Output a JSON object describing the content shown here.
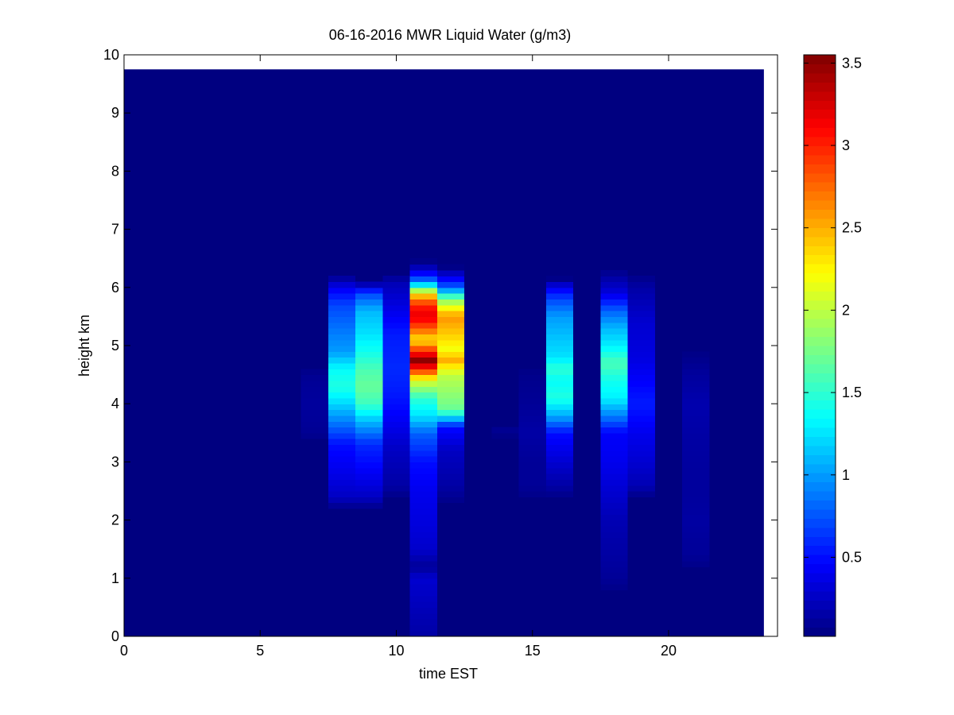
{
  "chart_data": {
    "type": "heatmap",
    "title": "06-16-2016 MWR Liquid Water (g/m3)",
    "xlabel": "time EST",
    "ylabel": "height km",
    "xlim": [
      0,
      24
    ],
    "ylim": [
      0,
      10
    ],
    "xticks": [
      0,
      5,
      10,
      15,
      20
    ],
    "yticks": [
      0,
      1,
      2,
      3,
      4,
      5,
      6,
      7,
      8,
      9,
      10
    ],
    "grid": false,
    "colormap": "jet",
    "colorbar": {
      "range": [
        0.02,
        3.55
      ],
      "ticks": [
        0.5,
        1,
        1.5,
        2,
        2.5,
        3,
        3.5
      ]
    },
    "data_extent": {
      "x": [
        0,
        23.5
      ],
      "y": [
        0,
        9.75
      ]
    },
    "background_value": 0.02,
    "columns": [
      {
        "x": [
          6.5,
          7.5
        ],
        "profile": [
          [
            3.4,
            0.06
          ],
          [
            3.6,
            0.1
          ],
          [
            4.0,
            0.12
          ],
          [
            4.4,
            0.1
          ],
          [
            4.6,
            0.05
          ]
        ]
      },
      {
        "x": [
          7.5,
          8.5
        ],
        "profile": [
          [
            2.2,
            0.05
          ],
          [
            2.4,
            0.25
          ],
          [
            2.8,
            0.38
          ],
          [
            3.3,
            0.5
          ],
          [
            3.7,
            0.9
          ],
          [
            4.0,
            1.2
          ],
          [
            4.3,
            1.45
          ],
          [
            4.6,
            1.35
          ],
          [
            4.9,
            1.0
          ],
          [
            5.2,
            0.9
          ],
          [
            5.7,
            0.7
          ],
          [
            6.0,
            0.4
          ],
          [
            6.2,
            0.05
          ]
        ]
      },
      {
        "x": [
          8.5,
          9.5
        ],
        "profile": [
          [
            2.2,
            0.05
          ],
          [
            2.4,
            0.25
          ],
          [
            2.8,
            0.42
          ],
          [
            3.3,
            0.6
          ],
          [
            3.7,
            1.1
          ],
          [
            4.0,
            1.55
          ],
          [
            4.3,
            1.7
          ],
          [
            4.6,
            1.6
          ],
          [
            4.9,
            1.4
          ],
          [
            5.2,
            1.25
          ],
          [
            5.6,
            1.1
          ],
          [
            5.9,
            0.7
          ],
          [
            6.1,
            0.05
          ]
        ]
      },
      {
        "x": [
          9.5,
          10.5
        ],
        "profile": [
          [
            2.4,
            0.05
          ],
          [
            2.6,
            0.15
          ],
          [
            3.2,
            0.25
          ],
          [
            3.8,
            0.45
          ],
          [
            4.2,
            0.55
          ],
          [
            4.6,
            0.6
          ],
          [
            5.2,
            0.55
          ],
          [
            5.7,
            0.35
          ],
          [
            6.1,
            0.2
          ],
          [
            6.2,
            0.05
          ]
        ]
      },
      {
        "x": [
          10.5,
          11.5
        ],
        "profile": [
          [
            0.0,
            0.15
          ],
          [
            0.5,
            0.22
          ],
          [
            1.0,
            0.3
          ],
          [
            1.2,
            0.1
          ],
          [
            1.5,
            0.28
          ],
          [
            2.0,
            0.35
          ],
          [
            2.5,
            0.4
          ],
          [
            3.0,
            0.5
          ],
          [
            3.5,
            0.8
          ],
          [
            3.8,
            1.25
          ],
          [
            4.1,
            1.5
          ],
          [
            4.4,
            2.1
          ],
          [
            4.6,
            3.0
          ],
          [
            4.75,
            3.5
          ],
          [
            4.9,
            3.0
          ],
          [
            5.1,
            2.3
          ],
          [
            5.3,
            2.8
          ],
          [
            5.5,
            3.2
          ],
          [
            5.7,
            3.0
          ],
          [
            5.9,
            2.3
          ],
          [
            6.1,
            0.9
          ],
          [
            6.3,
            0.3
          ],
          [
            6.45,
            0.05
          ]
        ]
      },
      {
        "x": [
          11.5,
          12.5
        ],
        "profile": [
          [
            2.3,
            0.05
          ],
          [
            2.6,
            0.15
          ],
          [
            3.2,
            0.25
          ],
          [
            3.6,
            0.5
          ],
          [
            3.9,
            1.7
          ],
          [
            4.2,
            1.85
          ],
          [
            4.5,
            2.0
          ],
          [
            4.75,
            2.5
          ],
          [
            4.95,
            2.2
          ],
          [
            5.2,
            2.4
          ],
          [
            5.5,
            2.6
          ],
          [
            5.8,
            1.8
          ],
          [
            6.0,
            0.8
          ],
          [
            6.2,
            0.35
          ],
          [
            6.35,
            0.05
          ]
        ]
      },
      {
        "x": [
          13.5,
          14.5
        ],
        "profile": [
          [
            3.45,
            0.05
          ],
          [
            3.55,
            0.08
          ],
          [
            3.65,
            0.05
          ]
        ]
      },
      {
        "x": [
          14.5,
          15.5
        ],
        "profile": [
          [
            2.4,
            0.05
          ],
          [
            2.6,
            0.1
          ],
          [
            3.0,
            0.1
          ],
          [
            3.5,
            0.15
          ],
          [
            4.0,
            0.1
          ],
          [
            4.5,
            0.06
          ],
          [
            4.6,
            0.04
          ]
        ]
      },
      {
        "x": [
          15.5,
          16.5
        ],
        "profile": [
          [
            2.4,
            0.05
          ],
          [
            2.6,
            0.15
          ],
          [
            3.0,
            0.3
          ],
          [
            3.5,
            0.5
          ],
          [
            3.8,
            1.05
          ],
          [
            4.1,
            1.45
          ],
          [
            4.4,
            1.35
          ],
          [
            4.6,
            1.5
          ],
          [
            4.8,
            1.25
          ],
          [
            5.1,
            1.15
          ],
          [
            5.5,
            1.0
          ],
          [
            5.8,
            0.7
          ],
          [
            6.0,
            0.4
          ],
          [
            6.15,
            0.05
          ]
        ]
      },
      {
        "x": [
          17.5,
          18.5
        ],
        "profile": [
          [
            0.8,
            0.05
          ],
          [
            1.0,
            0.1
          ],
          [
            2.0,
            0.2
          ],
          [
            2.5,
            0.3
          ],
          [
            3.0,
            0.4
          ],
          [
            3.5,
            0.45
          ],
          [
            3.8,
            0.9
          ],
          [
            4.1,
            1.3
          ],
          [
            4.4,
            1.4
          ],
          [
            4.7,
            1.6
          ],
          [
            5.0,
            1.3
          ],
          [
            5.3,
            1.1
          ],
          [
            5.6,
            0.8
          ],
          [
            5.9,
            0.35
          ],
          [
            6.1,
            0.2
          ],
          [
            6.3,
            0.05
          ]
        ]
      },
      {
        "x": [
          18.5,
          19.5
        ],
        "profile": [
          [
            2.4,
            0.05
          ],
          [
            2.6,
            0.2
          ],
          [
            3.0,
            0.3
          ],
          [
            3.5,
            0.4
          ],
          [
            4.0,
            0.55
          ],
          [
            4.4,
            0.45
          ],
          [
            4.8,
            0.35
          ],
          [
            5.4,
            0.3
          ],
          [
            6.0,
            0.15
          ],
          [
            6.2,
            0.05
          ]
        ]
      },
      {
        "x": [
          20.5,
          21.5
        ],
        "profile": [
          [
            1.2,
            0.05
          ],
          [
            1.4,
            0.1
          ],
          [
            2.0,
            0.14
          ],
          [
            2.5,
            0.12
          ],
          [
            3.0,
            0.13
          ],
          [
            3.5,
            0.15
          ],
          [
            4.0,
            0.18
          ],
          [
            4.5,
            0.12
          ],
          [
            4.8,
            0.06
          ],
          [
            4.9,
            0.04
          ]
        ]
      }
    ]
  }
}
